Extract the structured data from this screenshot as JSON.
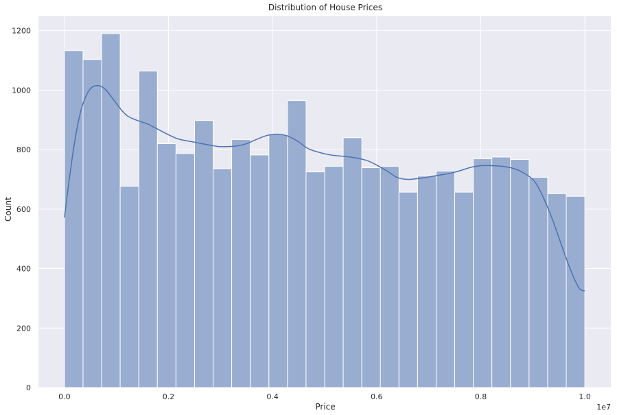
{
  "chart_data": {
    "type": "bar",
    "subtype": "histogram-with-kde",
    "title": "Distribution of House Prices",
    "xlabel": "Price",
    "ylabel": "Count",
    "x_offset_label": "1e7",
    "xlim": [
      -0.05,
      1.05
    ],
    "ylim": [
      0,
      1250
    ],
    "grid": true,
    "bin_edges": [
      0.0,
      0.0357,
      0.0714,
      0.1071,
      0.1429,
      0.1786,
      0.2143,
      0.25,
      0.2857,
      0.3214,
      0.3571,
      0.3929,
      0.4286,
      0.4643,
      0.5,
      0.5357,
      0.5714,
      0.6071,
      0.6429,
      0.6786,
      0.7143,
      0.75,
      0.7857,
      0.8214,
      0.8571,
      0.8929,
      0.9286,
      0.9643,
      1.0
    ],
    "values": [
      1133,
      1103,
      1190,
      677,
      1064,
      820,
      787,
      898,
      736,
      834,
      782,
      851,
      965,
      725,
      744,
      840,
      739,
      744,
      657,
      711,
      728,
      657,
      769,
      775,
      767,
      707,
      652,
      643
    ],
    "kde": {
      "x": [
        0.0,
        0.01,
        0.02,
        0.03,
        0.04,
        0.05,
        0.06,
        0.07,
        0.08,
        0.09,
        0.1,
        0.11,
        0.12,
        0.13,
        0.14,
        0.15,
        0.16,
        0.18,
        0.2,
        0.22,
        0.25,
        0.28,
        0.3,
        0.33,
        0.35,
        0.37,
        0.39,
        0.41,
        0.43,
        0.45,
        0.47,
        0.5,
        0.52,
        0.55,
        0.58,
        0.6,
        0.62,
        0.64,
        0.66,
        0.68,
        0.7,
        0.72,
        0.74,
        0.76,
        0.78,
        0.8,
        0.82,
        0.84,
        0.86,
        0.88,
        0.9,
        0.91,
        0.92,
        0.93,
        0.94,
        0.95,
        0.96,
        0.97,
        0.98,
        0.99,
        1.0
      ],
      "y": [
        572,
        710,
        830,
        920,
        975,
        1005,
        1015,
        1013,
        1000,
        978,
        955,
        932,
        915,
        905,
        898,
        892,
        886,
        868,
        850,
        835,
        825,
        815,
        810,
        812,
        820,
        835,
        848,
        852,
        845,
        826,
        802,
        786,
        780,
        775,
        764,
        748,
        728,
        706,
        700,
        703,
        708,
        714,
        720,
        729,
        740,
        746,
        746,
        744,
        738,
        724,
        700,
        675,
        640,
        600,
        555,
        505,
        455,
        408,
        365,
        332,
        325
      ]
    },
    "xticks": [
      {
        "value": 0.0,
        "label": "0.0"
      },
      {
        "value": 0.2,
        "label": "0.2"
      },
      {
        "value": 0.4,
        "label": "0.4"
      },
      {
        "value": 0.6,
        "label": "0.6"
      },
      {
        "value": 0.8,
        "label": "0.8"
      },
      {
        "value": 1.0,
        "label": "1.0"
      }
    ],
    "yticks": [
      {
        "value": 0,
        "label": "0"
      },
      {
        "value": 200,
        "label": "200"
      },
      {
        "value": 400,
        "label": "400"
      },
      {
        "value": 600,
        "label": "600"
      },
      {
        "value": 800,
        "label": "800"
      },
      {
        "value": 1000,
        "label": "1000"
      },
      {
        "value": 1200,
        "label": "1200"
      }
    ],
    "colors": {
      "background": "#eaeaf2",
      "grid": "#ffffff",
      "bar_fill": "#99add0",
      "bar_edge": "#ffffff",
      "kde_line": "#4c72b0"
    }
  }
}
